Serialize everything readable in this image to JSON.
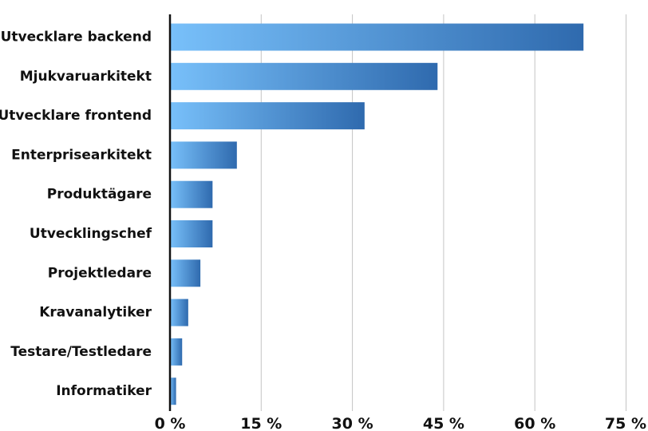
{
  "chart_data": {
    "type": "bar",
    "orientation": "horizontal",
    "categories": [
      "Utvecklare backend",
      "Mjukvaruarkitekt",
      "Utvecklare frontend",
      "Enterprisearkitekt",
      "Produktägare",
      "Utvecklingschef",
      "Projektledare",
      "Kravanalytiker",
      "Testare/Testledare",
      "Informatiker"
    ],
    "values": [
      68,
      44,
      32,
      11,
      7,
      7,
      5,
      3,
      2,
      1
    ],
    "x_ticks": [
      "0 %",
      "15 %",
      "30 %",
      "45 %",
      "60 %",
      "75 %"
    ],
    "xlim": [
      0,
      75
    ],
    "grid": true,
    "title": "",
    "xlabel": "",
    "ylabel": ""
  },
  "colors": {
    "bar_light": "#78c0fa",
    "bar_dark": "#2f6aae",
    "grid": "#c4c4c4",
    "axis": "#111111"
  }
}
